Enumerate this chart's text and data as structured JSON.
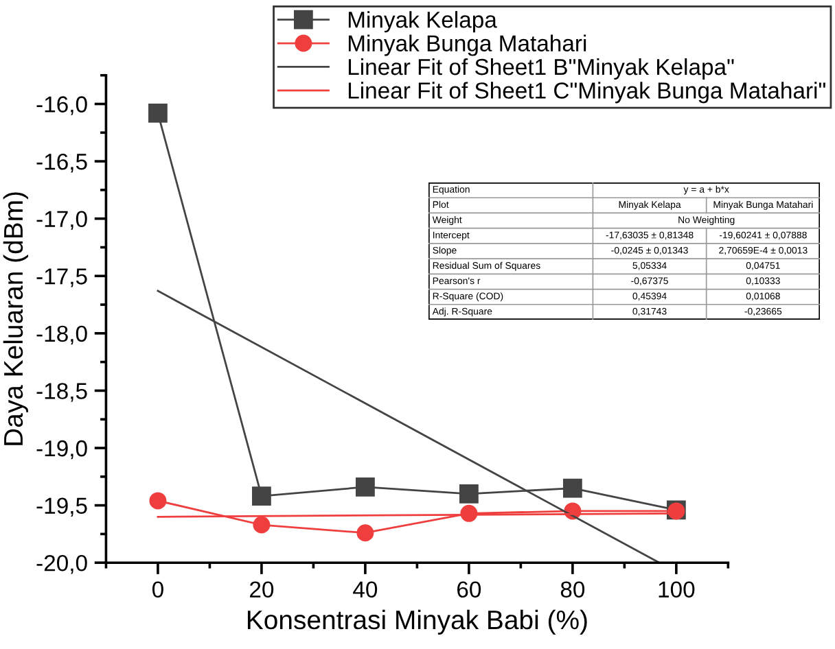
{
  "chart_data": {
    "type": "line",
    "xlabel": "Konsentrasi Minyak Babi (%)",
    "ylabel": "Daya Keluaran (dBm)",
    "x": [
      0,
      20,
      40,
      60,
      80,
      100
    ],
    "series": [
      {
        "name": "Minyak Kelapa",
        "color": "#444444",
        "values": [
          -16.08,
          -19.42,
          -19.34,
          -19.4,
          -19.35,
          -19.54
        ],
        "marker": "square"
      },
      {
        "name": "Minyak Bunga Matahari",
        "color": "#ef3e3e",
        "values": [
          -19.46,
          -19.67,
          -19.74,
          -19.57,
          -19.55,
          -19.55
        ],
        "marker": "circle"
      },
      {
        "name": "Linear Fit of Sheet1 B\"Minyak Kelapa\"",
        "color": "#444444",
        "x": [
          0,
          96.7
        ],
        "values": [
          -17.63,
          -20.0
        ],
        "marker": "none"
      },
      {
        "name": "Linear Fit of Sheet1 C\"Minyak Bunga Matahari\"",
        "color": "#ef3e3e",
        "x": [
          0,
          100
        ],
        "values": [
          -19.6,
          -19.57
        ],
        "marker": "none"
      }
    ],
    "xlim": [
      -10,
      110
    ],
    "xticks": [
      0,
      20,
      40,
      60,
      80,
      100
    ],
    "ylim": [
      -20.0,
      -15.75
    ],
    "yticks": [
      {
        "value": -20.0,
        "label": "-20,0"
      },
      {
        "value": -19.5,
        "label": "-19,5"
      },
      {
        "value": -19.0,
        "label": "-19,0"
      },
      {
        "value": -18.5,
        "label": "-18,5"
      },
      {
        "value": -18.0,
        "label": "-18,0"
      },
      {
        "value": -17.5,
        "label": "-17,5"
      },
      {
        "value": -17.0,
        "label": "-17,0"
      },
      {
        "value": -16.5,
        "label": "-16,5"
      },
      {
        "value": -16.0,
        "label": "-16,0"
      }
    ],
    "grid": false,
    "legend": "top right",
    "line_style": "solid",
    "annotations": [
      "Equation",
      "y = a + b*x",
      "Plot",
      "Minyak Kelapa",
      "Minyak Bunga Matahari",
      "Weight",
      "No Weighting",
      "Intercept",
      "-17,63035 ± 0,81348",
      "-19,60241 ± 0,07888",
      "Slope",
      "-0,0245 ± 0,01343",
      "2,70659E-4 ± 0,0013",
      "Residual Sum of Squares",
      "5,05334",
      "0,04751",
      "Pearson's r",
      "-0,67375",
      "0,10333",
      "R-Square (COD)",
      "0,45394",
      "0,01068",
      "Adj. R-Square",
      "0,31743",
      "-0,23665"
    ]
  }
}
